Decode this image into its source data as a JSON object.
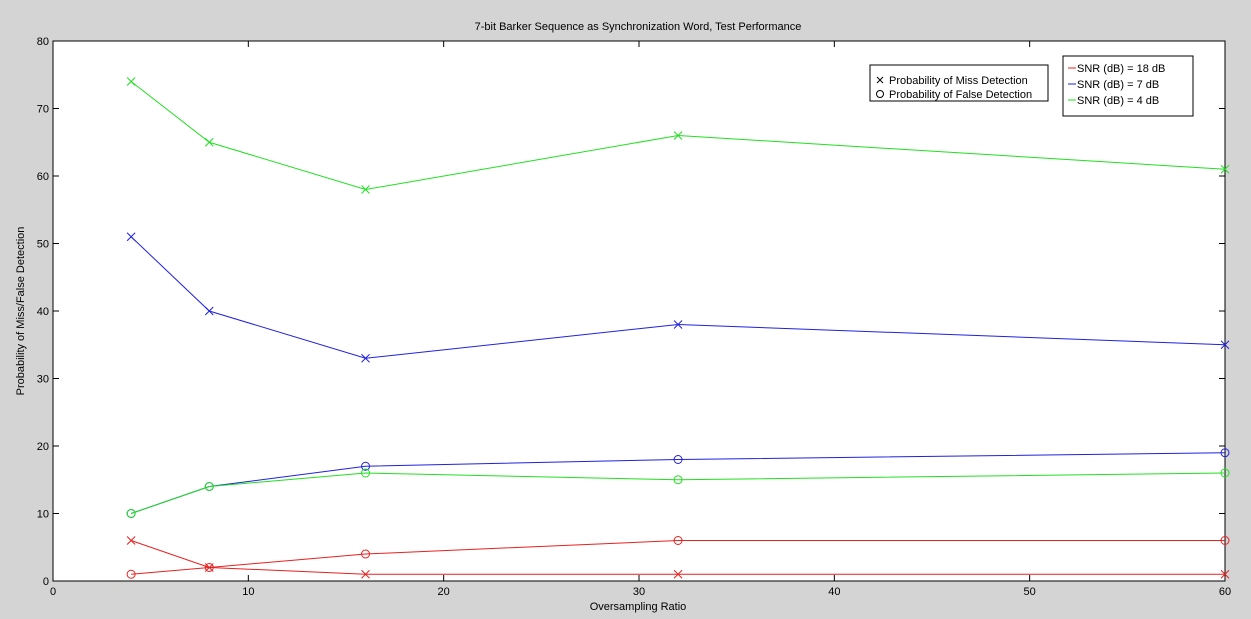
{
  "chart_data": {
    "type": "line",
    "title": "7-bit Barker Sequence as Synchronization Word, Test Performance",
    "xlabel": "Oversampling Ratio",
    "ylabel": "Probability of Miss/False Detection",
    "xlim": [
      0,
      60
    ],
    "ylim": [
      0,
      80
    ],
    "xticks": [
      0,
      10,
      20,
      30,
      40,
      50,
      60
    ],
    "yticks": [
      0,
      10,
      20,
      30,
      40,
      50,
      60,
      70,
      80
    ],
    "grid": false,
    "x": [
      4,
      8,
      16,
      32,
      60
    ],
    "series": [
      {
        "snr": "18",
        "kind": "miss",
        "marker": "x",
        "color": "#e82020",
        "values": [
          6,
          2,
          1,
          1,
          1
        ]
      },
      {
        "snr": "18",
        "kind": "false",
        "marker": "o",
        "color": "#e82020",
        "values": [
          1,
          2,
          4,
          6,
          6
        ]
      },
      {
        "snr": "7",
        "kind": "miss",
        "marker": "x",
        "color": "#2020e0",
        "values": [
          51,
          40,
          33,
          38,
          35
        ]
      },
      {
        "snr": "7",
        "kind": "false",
        "marker": "o",
        "color": "#2020e0",
        "values": [
          10,
          14,
          17,
          18,
          19
        ]
      },
      {
        "snr": "4",
        "kind": "miss",
        "marker": "x",
        "color": "#20e020",
        "values": [
          74,
          65,
          58,
          66,
          61
        ]
      },
      {
        "snr": "4",
        "kind": "false",
        "marker": "o",
        "color": "#20e020",
        "values": [
          10,
          14,
          16,
          15,
          16
        ]
      }
    ],
    "marker_legend": {
      "placement": "top-right",
      "entries": [
        {
          "symbol": "x",
          "label": "Probability of Miss Detection"
        },
        {
          "symbol": "o",
          "label": "Probability of False Detection"
        }
      ]
    },
    "color_legend": {
      "placement": "top-right",
      "entries": [
        {
          "color": "#e82020",
          "label": "SNR (dB) = 18 dB"
        },
        {
          "color": "#2020e0",
          "label": "SNR (dB) = 7 dB"
        },
        {
          "color": "#20e020",
          "label": "SNR (dB) = 4 dB"
        }
      ]
    }
  }
}
